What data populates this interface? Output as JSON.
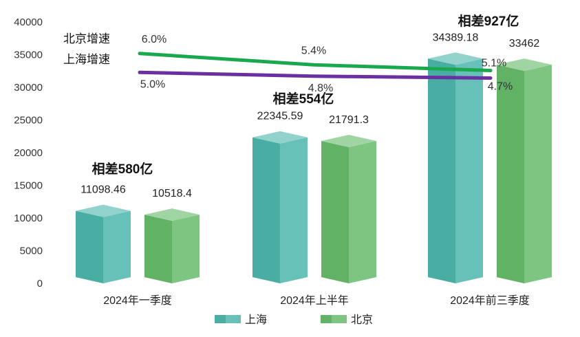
{
  "chart_data": {
    "type": "bar",
    "categories": [
      "2024年一季度",
      "2024年上半年",
      "2024年前三季度"
    ],
    "series": [
      {
        "name": "上海",
        "values": [
          11098.46,
          22345.59,
          34389.18
        ],
        "value_labels": [
          "11098.46",
          "22345.59",
          "34389.18"
        ],
        "color": "#4db6ac"
      },
      {
        "name": "北京",
        "values": [
          10518.4,
          21791.3,
          33462
        ],
        "value_labels": [
          "10518.4",
          "21791.3",
          "33462"
        ],
        "color": "#66bb6a"
      }
    ],
    "ylim": [
      0,
      40000
    ],
    "yticks": [
      "0",
      "5000",
      "10000",
      "15000",
      "20000",
      "25000",
      "30000",
      "35000",
      "40000"
    ],
    "differences": [
      "相差580亿",
      "相差554亿",
      "相差927亿"
    ],
    "growth_series": [
      {
        "name": "北京增速",
        "values": [
          6.0,
          5.4,
          5.1
        ],
        "labels": [
          "6.0%",
          "5.4%",
          "5.1%"
        ],
        "color": "#1aa84f"
      },
      {
        "name": "上海增速",
        "values": [
          5.0,
          4.8,
          4.7
        ],
        "labels": [
          "5.0%",
          "4.8%",
          "4.7%"
        ],
        "color": "#6a2fa0"
      }
    ],
    "legend": [
      "上海",
      "北京"
    ],
    "legend_position": "bottom",
    "grid": false
  }
}
